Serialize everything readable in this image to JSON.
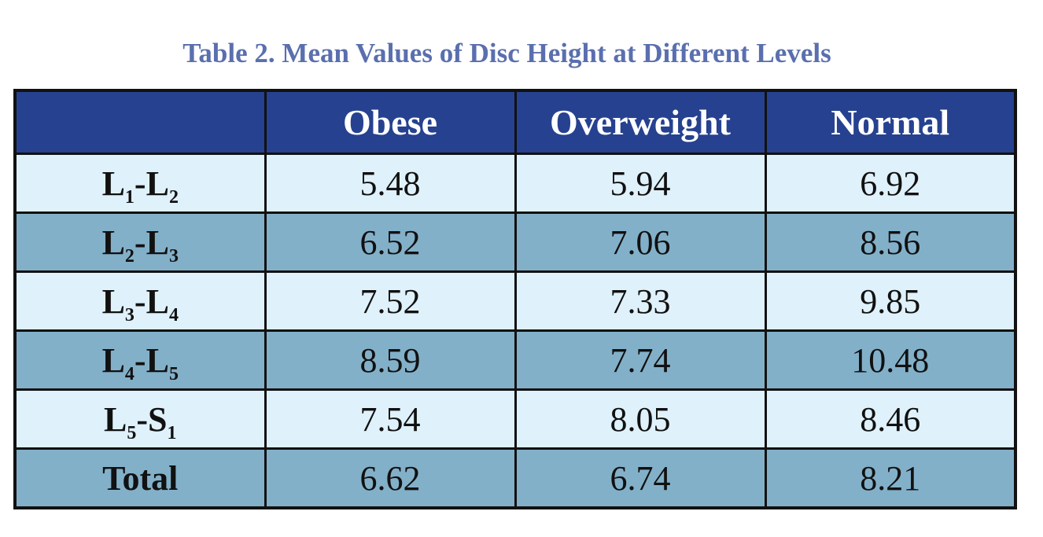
{
  "title": "Table 2. Mean Values of Disc Height at Different Levels",
  "table": {
    "headers": [
      "",
      "Obese",
      "Overweight",
      "Normal"
    ],
    "rows": [
      {
        "label": {
          "a": "L",
          "a_sub": "1",
          "sep": "-",
          "b": "L",
          "b_sub": "2"
        },
        "values": [
          "5.48",
          "5.94",
          "6.92"
        ]
      },
      {
        "label": {
          "a": "L",
          "a_sub": "2",
          "sep": "-",
          "b": "L",
          "b_sub": "3"
        },
        "values": [
          "6.52",
          "7.06",
          "8.56"
        ]
      },
      {
        "label": {
          "a": "L",
          "a_sub": "3",
          "sep": "-",
          "b": "L",
          "b_sub": "4"
        },
        "values": [
          "7.52",
          "7.33",
          "9.85"
        ]
      },
      {
        "label": {
          "a": "L",
          "a_sub": "4",
          "sep": "-",
          "b": "L",
          "b_sub": "5"
        },
        "values": [
          "8.59",
          "7.74",
          "10.48"
        ]
      },
      {
        "label": {
          "a": "L",
          "a_sub": "5",
          "sep": "-",
          "b": "S",
          "b_sub": "1"
        },
        "values": [
          "7.54",
          "8.05",
          "8.46"
        ]
      }
    ],
    "total": {
      "label": "Total",
      "values": [
        "6.62",
        "6.74",
        "8.21"
      ]
    }
  },
  "colors": {
    "title": "#5a6fae",
    "header_bg": "#26418f",
    "row_light": "#dff1fb",
    "row_dark": "#83b0c9"
  }
}
